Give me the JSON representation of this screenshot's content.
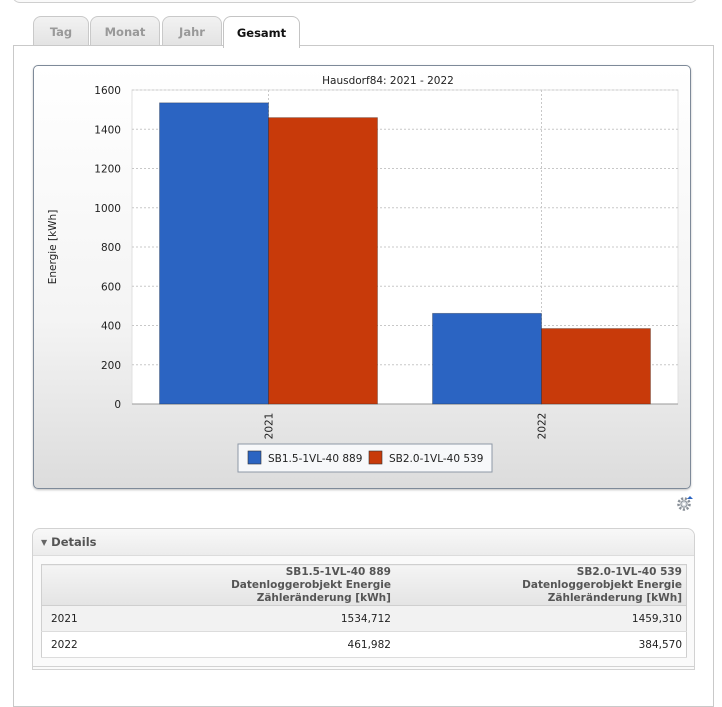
{
  "tabs": [
    {
      "label": "Tag",
      "active": false
    },
    {
      "label": "Monat",
      "active": false
    },
    {
      "label": "Jahr",
      "active": false
    },
    {
      "label": "Gesamt",
      "active": true
    }
  ],
  "chart_data": {
    "type": "bar",
    "title": "Hausdorf84: 2021 - 2022",
    "ylabel": "Energie [kWh]",
    "xlabel": "",
    "categories": [
      "2021",
      "2022"
    ],
    "ylim": [
      0,
      1600
    ],
    "yticks": [
      "0",
      "200",
      "400",
      "600",
      "800",
      "1000",
      "1200",
      "1400",
      "1600"
    ],
    "grid": true,
    "legend_position": "bottom",
    "series": [
      {
        "name": "SB1.5-1VL-40 889",
        "color": "#2b64c2",
        "values": [
          1534.712,
          461.982
        ]
      },
      {
        "name": "SB2.0-1VL-40 539",
        "color": "#c83a0a",
        "values": [
          1459.31,
          384.57
        ]
      }
    ]
  },
  "details": {
    "title": "Details",
    "columns": [
      {
        "line1": "SB1.5-1VL-40 889",
        "line2": "Datenloggerobjekt Energie",
        "line3": "Zähleränderung [kWh]"
      },
      {
        "line1": "SB2.0-1VL-40 539",
        "line2": "Datenloggerobjekt Energie",
        "line3": "Zähleränderung [kWh]"
      }
    ],
    "rows": [
      {
        "label": "2021",
        "v1": "1534,712",
        "v2": "1459,310"
      },
      {
        "label": "2022",
        "v1": "461,982",
        "v2": "384,570"
      }
    ]
  },
  "icons": {
    "settings": "gear-icon",
    "collapse": "triangle-down-icon"
  }
}
